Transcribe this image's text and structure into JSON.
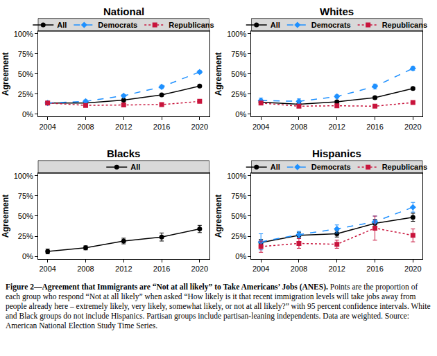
{
  "chart_data": [
    {
      "type": "line",
      "title": "National",
      "ylabel": "Agreement",
      "x": [
        2004,
        2008,
        2012,
        2016,
        2020
      ],
      "xlim": [
        2003,
        2021
      ],
      "xticks": [
        2004,
        2008,
        2012,
        2016,
        2020
      ],
      "ylim": [
        -3,
        103
      ],
      "yticks": [
        {
          "value": 0,
          "label": "0%"
        },
        {
          "value": 25,
          "label": "25%"
        },
        {
          "value": 50,
          "label": "50%"
        },
        {
          "value": 75,
          "label": "75%"
        },
        {
          "value": 100,
          "label": "100%"
        }
      ],
      "grid": false,
      "legend": "top",
      "series": [
        {
          "name": "All",
          "color": "#000000",
          "marker": "circle",
          "line_style": "solid",
          "values": [
            14,
            14,
            17.5,
            24,
            35
          ],
          "error": [
            1.5,
            1.2,
            1.2,
            1.2,
            1.2
          ]
        },
        {
          "name": "Democrats",
          "color": "#1e90ff",
          "marker": "diamond",
          "line_style": "dash",
          "values": [
            14,
            16,
            23,
            34,
            52.5
          ],
          "error": [
            2,
            1.8,
            1.5,
            2,
            1.8
          ]
        },
        {
          "name": "Republicans",
          "color": "#c8143c",
          "marker": "square",
          "line_style": "dot",
          "values": [
            14,
            11,
            11.5,
            12,
            16
          ],
          "error": [
            2,
            1.8,
            1.5,
            1.5,
            1.5
          ]
        }
      ]
    },
    {
      "type": "line",
      "title": "Whites",
      "ylabel": "Agreement",
      "x": [
        2004,
        2008,
        2012,
        2016,
        2020
      ],
      "xlim": [
        2003,
        2021
      ],
      "xticks": [
        2004,
        2008,
        2012,
        2016,
        2020
      ],
      "ylim": [
        -3,
        103
      ],
      "yticks": [
        {
          "value": 0,
          "label": "0%"
        },
        {
          "value": 25,
          "label": "25%"
        },
        {
          "value": 50,
          "label": "50%"
        },
        {
          "value": 75,
          "label": "75%"
        },
        {
          "value": 100,
          "label": "100%"
        }
      ],
      "grid": false,
      "legend": "top",
      "series": [
        {
          "name": "All",
          "color": "#000000",
          "marker": "circle",
          "line_style": "solid",
          "values": [
            15,
            12.5,
            15.5,
            20.5,
            32
          ],
          "error": [
            1.8,
            1.5,
            1.3,
            1.5,
            1.5
          ]
        },
        {
          "name": "Democrats",
          "color": "#1e90ff",
          "marker": "diamond",
          "line_style": "dash",
          "values": [
            17,
            16,
            22,
            34.5,
            57
          ],
          "error": [
            3,
            3,
            2,
            3,
            2.5
          ]
        },
        {
          "name": "Republicans",
          "color": "#c8143c",
          "marker": "square",
          "line_style": "dot",
          "values": [
            14,
            10,
            10.5,
            10,
            14.5
          ],
          "error": [
            2,
            2,
            1.5,
            1.5,
            1.5
          ]
        }
      ]
    },
    {
      "type": "line",
      "title": "Blacks",
      "ylabel": "Agreement",
      "x": [
        2004,
        2008,
        2012,
        2016,
        2020
      ],
      "xlim": [
        2003,
        2021
      ],
      "xticks": [
        2004,
        2008,
        2012,
        2016,
        2020
      ],
      "ylim": [
        -3,
        103
      ],
      "yticks": [
        {
          "value": 0,
          "label": "0%"
        },
        {
          "value": 25,
          "label": "25%"
        },
        {
          "value": 50,
          "label": "50%"
        },
        {
          "value": 75,
          "label": "75%"
        },
        {
          "value": 100,
          "label": "100%"
        }
      ],
      "grid": false,
      "legend": "top",
      "series": [
        {
          "name": "All",
          "color": "#000000",
          "marker": "circle",
          "line_style": "solid",
          "values": [
            6,
            10.5,
            19,
            24,
            34
          ],
          "error": [
            3,
            2.5,
            3.5,
            5,
            4.5
          ]
        }
      ]
    },
    {
      "type": "line",
      "title": "Hispanics",
      "ylabel": "Agreement",
      "x": [
        2004,
        2008,
        2012,
        2016,
        2020
      ],
      "xlim": [
        2003,
        2021
      ],
      "xticks": [
        2004,
        2008,
        2012,
        2016,
        2020
      ],
      "ylim": [
        -3,
        103
      ],
      "yticks": [
        {
          "value": 0,
          "label": "0%"
        },
        {
          "value": 25,
          "label": "25%"
        },
        {
          "value": 50,
          "label": "50%"
        },
        {
          "value": 75,
          "label": "75%"
        },
        {
          "value": 100,
          "label": "100%"
        }
      ],
      "grid": false,
      "legend": "top",
      "series": [
        {
          "name": "All",
          "color": "#000000",
          "marker": "circle",
          "line_style": "solid",
          "values": [
            17,
            26,
            28,
            41,
            48.5
          ],
          "error": [
            4,
            4,
            4,
            5,
            5
          ]
        },
        {
          "name": "Democrats",
          "color": "#1e90ff",
          "marker": "diamond",
          "line_style": "dash",
          "values": [
            18,
            27,
            34,
            43,
            61
          ],
          "error": [
            10,
            4,
            5,
            7,
            6
          ]
        },
        {
          "name": "Republicans",
          "color": "#c8143c",
          "marker": "square",
          "line_style": "dot",
          "values": [
            12,
            16,
            15,
            35,
            26
          ],
          "error": [
            7,
            6,
            5,
            15,
            8
          ]
        }
      ]
    }
  ],
  "caption": {
    "title": "Figure 2—Agreement that Immigrants are “Not at all likely” to Take Americans’ Jobs (ANES).",
    "text": "Points are the proportion of each group who respond “Not at all likely” when asked “How likely is it that recent immigration levels will take jobs away from people already here – extremely likely, very likely, somewhat likely, or not at all likely?” with 95 percent confidence intervals. White and Black groups do not include Hispanics. Partisan groups include partisan-leaning independents. Data are weighted. Source: American National Election Study Time Series."
  }
}
